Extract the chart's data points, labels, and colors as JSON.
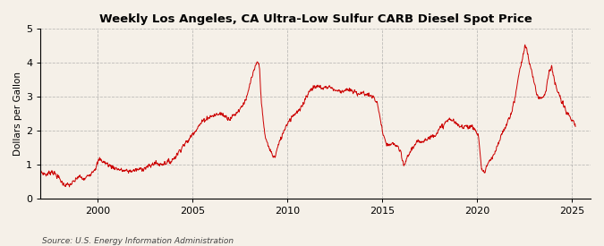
{
  "title": "Weekly Los Angeles, CA Ultra-Low Sulfur CARB Diesel Spot Price",
  "ylabel": "Dollars per Gallon",
  "source": "Source: U.S. Energy Information Administration",
  "line_color": "#cc0000",
  "background_color": "#f5f0e8",
  "grid_color": "#999999",
  "ylim": [
    0,
    5
  ],
  "yticks": [
    0,
    1,
    2,
    3,
    4,
    5
  ],
  "xlim_start": 1997.0,
  "xlim_end": 2026.0,
  "xticks": [
    2000,
    2005,
    2010,
    2015,
    2020,
    2025
  ],
  "anchors": [
    [
      1997.0,
      0.78
    ],
    [
      1997.3,
      0.7
    ],
    [
      1997.6,
      0.8
    ],
    [
      1997.9,
      0.65
    ],
    [
      1998.2,
      0.42
    ],
    [
      1998.5,
      0.38
    ],
    [
      1998.8,
      0.5
    ],
    [
      1999.0,
      0.65
    ],
    [
      1999.3,
      0.55
    ],
    [
      1999.6,
      0.72
    ],
    [
      1999.9,
      0.9
    ],
    [
      2000.1,
      1.15
    ],
    [
      2000.4,
      1.05
    ],
    [
      2000.7,
      0.95
    ],
    [
      2001.0,
      0.88
    ],
    [
      2001.3,
      0.82
    ],
    [
      2001.6,
      0.8
    ],
    [
      2001.9,
      0.82
    ],
    [
      2002.2,
      0.85
    ],
    [
      2002.5,
      0.9
    ],
    [
      2002.8,
      0.95
    ],
    [
      2003.0,
      1.05
    ],
    [
      2003.3,
      1.0
    ],
    [
      2003.6,
      1.05
    ],
    [
      2003.9,
      1.1
    ],
    [
      2004.2,
      1.3
    ],
    [
      2004.5,
      1.55
    ],
    [
      2004.8,
      1.7
    ],
    [
      2005.0,
      1.9
    ],
    [
      2005.3,
      2.1
    ],
    [
      2005.6,
      2.3
    ],
    [
      2005.9,
      2.4
    ],
    [
      2006.2,
      2.45
    ],
    [
      2006.5,
      2.5
    ],
    [
      2006.8,
      2.4
    ],
    [
      2007.0,
      2.35
    ],
    [
      2007.3,
      2.5
    ],
    [
      2007.6,
      2.7
    ],
    [
      2007.9,
      3.0
    ],
    [
      2008.1,
      3.5
    ],
    [
      2008.45,
      4.05
    ],
    [
      2008.55,
      3.8
    ],
    [
      2008.65,
      2.8
    ],
    [
      2008.75,
      2.2
    ],
    [
      2008.85,
      1.8
    ],
    [
      2009.0,
      1.55
    ],
    [
      2009.2,
      1.3
    ],
    [
      2009.35,
      1.2
    ],
    [
      2009.5,
      1.5
    ],
    [
      2009.7,
      1.8
    ],
    [
      2009.9,
      2.1
    ],
    [
      2010.1,
      2.3
    ],
    [
      2010.4,
      2.5
    ],
    [
      2010.7,
      2.6
    ],
    [
      2011.0,
      3.0
    ],
    [
      2011.3,
      3.25
    ],
    [
      2011.6,
      3.3
    ],
    [
      2011.9,
      3.25
    ],
    [
      2012.2,
      3.3
    ],
    [
      2012.5,
      3.2
    ],
    [
      2012.8,
      3.15
    ],
    [
      2013.1,
      3.2
    ],
    [
      2013.4,
      3.15
    ],
    [
      2013.7,
      3.1
    ],
    [
      2014.0,
      3.1
    ],
    [
      2014.3,
      3.05
    ],
    [
      2014.6,
      2.95
    ],
    [
      2014.8,
      2.7
    ],
    [
      2015.0,
      2.05
    ],
    [
      2015.1,
      1.8
    ],
    [
      2015.2,
      1.6
    ],
    [
      2015.4,
      1.55
    ],
    [
      2015.6,
      1.6
    ],
    [
      2015.8,
      1.55
    ],
    [
      2016.0,
      1.3
    ],
    [
      2016.15,
      0.95
    ],
    [
      2016.3,
      1.15
    ],
    [
      2016.5,
      1.4
    ],
    [
      2016.7,
      1.55
    ],
    [
      2016.9,
      1.65
    ],
    [
      2017.1,
      1.7
    ],
    [
      2017.4,
      1.75
    ],
    [
      2017.7,
      1.85
    ],
    [
      2018.0,
      2.0
    ],
    [
      2018.3,
      2.2
    ],
    [
      2018.6,
      2.35
    ],
    [
      2018.9,
      2.2
    ],
    [
      2019.1,
      2.1
    ],
    [
      2019.4,
      2.15
    ],
    [
      2019.7,
      2.1
    ],
    [
      2019.9,
      2.05
    ],
    [
      2020.1,
      1.8
    ],
    [
      2020.25,
      0.85
    ],
    [
      2020.4,
      0.75
    ],
    [
      2020.55,
      1.0
    ],
    [
      2020.7,
      1.1
    ],
    [
      2020.85,
      1.2
    ],
    [
      2021.0,
      1.4
    ],
    [
      2021.2,
      1.7
    ],
    [
      2021.4,
      2.0
    ],
    [
      2021.6,
      2.2
    ],
    [
      2021.8,
      2.5
    ],
    [
      2022.0,
      2.9
    ],
    [
      2022.2,
      3.6
    ],
    [
      2022.4,
      4.1
    ],
    [
      2022.55,
      4.55
    ],
    [
      2022.7,
      4.2
    ],
    [
      2022.85,
      3.8
    ],
    [
      2023.0,
      3.5
    ],
    [
      2023.15,
      3.1
    ],
    [
      2023.3,
      2.95
    ],
    [
      2023.5,
      3.0
    ],
    [
      2023.65,
      3.2
    ],
    [
      2023.8,
      3.7
    ],
    [
      2023.95,
      3.9
    ],
    [
      2024.1,
      3.4
    ],
    [
      2024.3,
      3.1
    ],
    [
      2024.5,
      2.8
    ],
    [
      2024.7,
      2.6
    ],
    [
      2024.9,
      2.4
    ],
    [
      2025.1,
      2.2
    ],
    [
      2025.2,
      2.1
    ]
  ]
}
